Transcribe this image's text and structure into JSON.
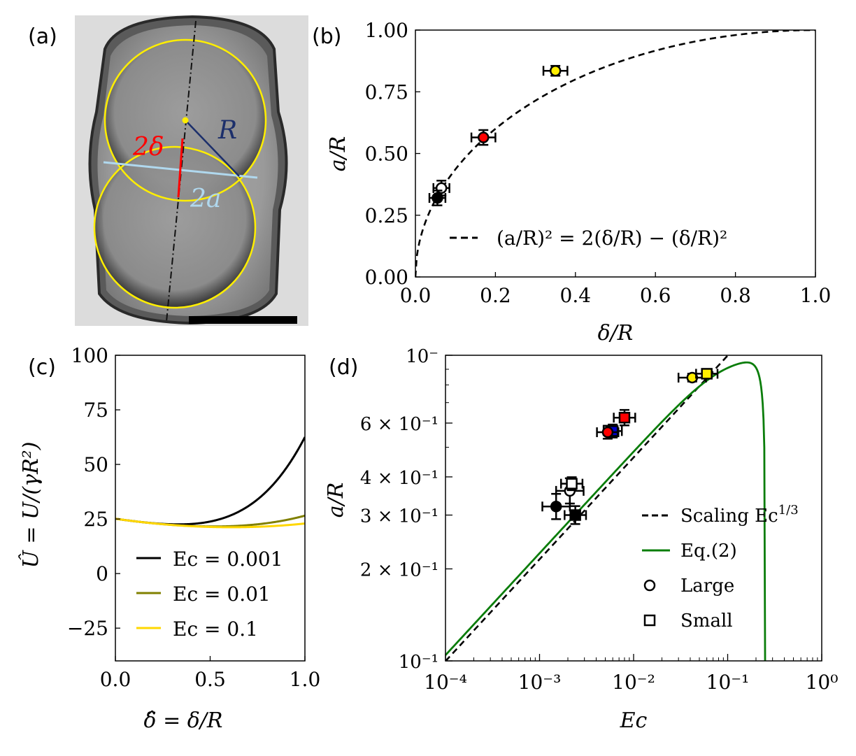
{
  "panel_a": {
    "label": "(a)",
    "annotations": {
      "two_delta": "2δ",
      "R": "R",
      "two_a": "2a"
    }
  },
  "colors": {
    "yellow": "#ffee00",
    "red": "#ff0000",
    "blue": "#0000cc",
    "black": "#000000",
    "olive": "#808000",
    "gold": "#ffd700",
    "green": "#0a7d0a",
    "light_blue": "#b0d8ee",
    "navy": "#1c2f6b"
  },
  "chart_data": [
    {
      "id": "b",
      "panel_label": "(b)",
      "type": "scatter",
      "title": "",
      "xlabel": "δ/R",
      "ylabel": "a/R",
      "xlim": [
        0,
        1
      ],
      "ylim": [
        0,
        1
      ],
      "xticks": [
        "0.0",
        "0.2",
        "0.4",
        "0.6",
        "0.8",
        "1.0"
      ],
      "yticks": [
        "0.00",
        "0.25",
        "0.50",
        "0.75",
        "1.00"
      ],
      "legend": "bottom-right",
      "legend_label": "(a/R)² = 2(δ/R) − (δ/R)²",
      "curve": "a/R = sqrt(2(δ/R) - (δ/R)^2)",
      "points": [
        {
          "x": 0.065,
          "y": 0.36,
          "xerr": 0.02,
          "yerr": 0.03,
          "color": "white"
        },
        {
          "x": 0.055,
          "y": 0.32,
          "xerr": 0.02,
          "yerr": 0.03,
          "color": "black"
        },
        {
          "x": 0.17,
          "y": 0.565,
          "xerr": 0.03,
          "yerr": 0.03,
          "color": "red"
        },
        {
          "x": 0.35,
          "y": 0.835,
          "xerr": 0.03,
          "yerr": 0.02,
          "color": "yellow"
        }
      ]
    },
    {
      "id": "c",
      "panel_label": "(c)",
      "type": "line",
      "title": "",
      "xlabel": "δ̂ = δ/R",
      "ylabel": "Û = U/(γR²)",
      "xlim": [
        0,
        1
      ],
      "ylim": [
        -40,
        100
      ],
      "xticks": [
        "0.0",
        "0.5",
        "1.0"
      ],
      "yticks": [
        "−25",
        "0",
        "25",
        "50",
        "75",
        "100"
      ],
      "legend": "bottom-right",
      "series": [
        {
          "name": "Ec = 0.001",
          "ec": 0.001,
          "color": "black"
        },
        {
          "name": "Ec = 0.01",
          "ec": 0.01,
          "color": "olive"
        },
        {
          "name": "Ec = 0.1",
          "ec": 0.1,
          "color": "gold"
        }
      ]
    },
    {
      "id": "d",
      "panel_label": "(d)",
      "type": "scatter",
      "scale": "log-log",
      "title": "",
      "xlabel": "Ec",
      "ylabel": "a/R",
      "xlim": [
        0.0001,
        1
      ],
      "ylim": [
        0.1,
        1
      ],
      "xticks": [
        "10⁻⁴",
        "10⁻³",
        "10⁻²",
        "10⁻¹",
        "10⁰"
      ],
      "yticks": [
        "10⁻¹",
        "2 × 10⁻¹",
        "3 × 10⁻¹",
        "4 × 10⁻¹",
        "6 × 10⁻¹",
        "10⁻"
      ],
      "legend": "bottom-right",
      "legend_items": [
        "Scaling Ec^1/3",
        "Eq.(2)",
        "Large",
        "Small"
      ],
      "scaling_label": "Scaling Ec",
      "scaling_exponent": "1/3",
      "eq_label": "Eq.(2)",
      "large_label": "Large",
      "small_label": "Small",
      "scaling_prefactor": 2.15,
      "eq2_prefactor": 2.25,
      "points": [
        {
          "x": 0.0021,
          "y": 0.36,
          "xerr_f": 1.4,
          "yerr_f": 1.1,
          "shape": "circle",
          "color": "white"
        },
        {
          "x": 0.0015,
          "y": 0.32,
          "xerr_f": 1.4,
          "yerr_f": 1.1,
          "shape": "circle",
          "color": "black"
        },
        {
          "x": 0.0024,
          "y": 0.3,
          "xerr_f": 1.3,
          "yerr_f": 1.07,
          "shape": "square",
          "color": "black"
        },
        {
          "x": 0.0022,
          "y": 0.38,
          "xerr_f": 1.3,
          "yerr_f": 1.05,
          "shape": "square",
          "color": "white"
        },
        {
          "x": 0.006,
          "y": 0.565,
          "xerr_f": 1.25,
          "yerr_f": 1.05,
          "shape": "square",
          "color": "blue"
        },
        {
          "x": 0.0053,
          "y": 0.56,
          "xerr_f": 1.3,
          "yerr_f": 1.05,
          "shape": "circle",
          "color": "red"
        },
        {
          "x": 0.008,
          "y": 0.625,
          "xerr_f": 1.3,
          "yerr_f": 1.06,
          "shape": "square",
          "color": "red"
        },
        {
          "x": 0.042,
          "y": 0.845,
          "xerr_f": 1.4,
          "yerr_f": 1.03,
          "shape": "circle",
          "color": "yellow"
        },
        {
          "x": 0.06,
          "y": 0.87,
          "xerr_f": 1.3,
          "yerr_f": 1.03,
          "shape": "square",
          "color": "yellow"
        }
      ]
    }
  ]
}
